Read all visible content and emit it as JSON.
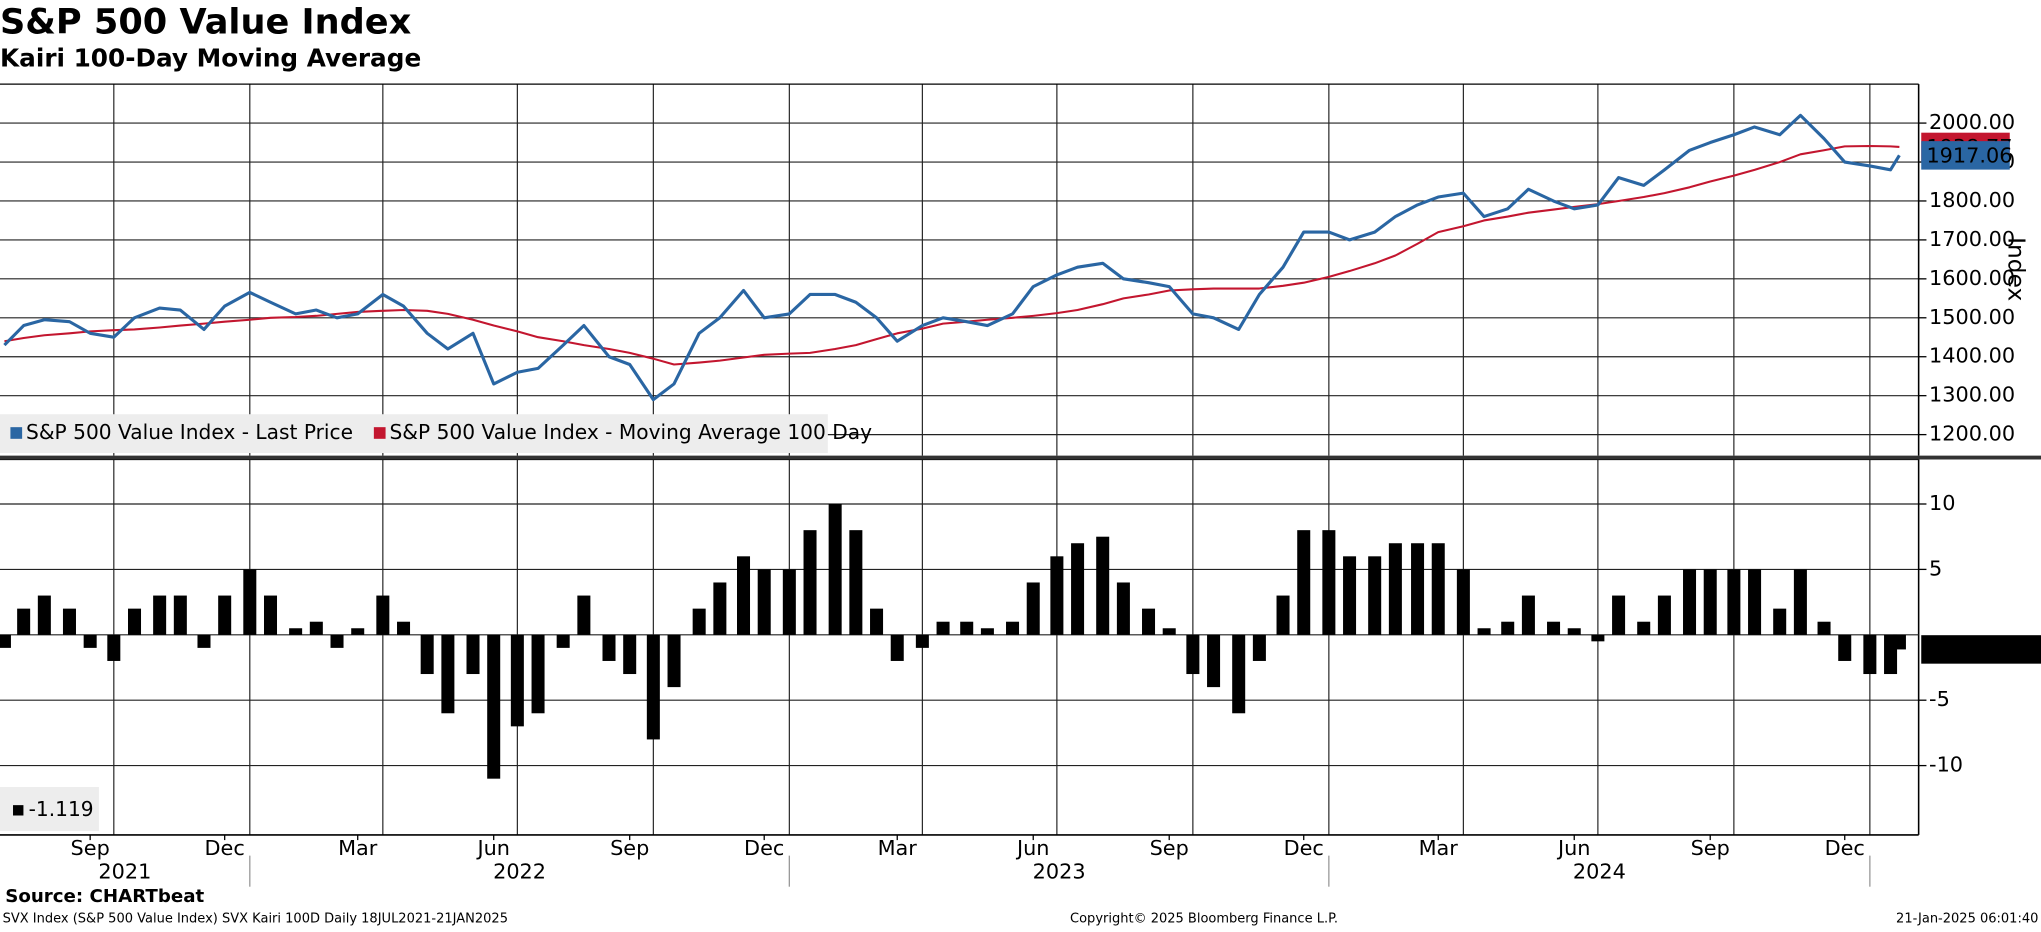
{
  "title": "S&P 500 Value Index",
  "subtitle": "Kairi 100-Day Moving Average",
  "chart_data": [
    {
      "type": "line",
      "y_label": "Index",
      "x": [
        "2021-07-19",
        "2021-08-01",
        "2021-08-15",
        "2021-09-01",
        "2021-09-15",
        "2021-10-01",
        "2021-10-15",
        "2021-11-01",
        "2021-11-15",
        "2021-12-01",
        "2021-12-15",
        "2022-01-01",
        "2022-01-15",
        "2022-02-01",
        "2022-02-15",
        "2022-03-01",
        "2022-03-15",
        "2022-04-01",
        "2022-04-15",
        "2022-05-01",
        "2022-05-15",
        "2022-06-01",
        "2022-06-15",
        "2022-07-01",
        "2022-07-15",
        "2022-08-01",
        "2022-08-15",
        "2022-09-01",
        "2022-09-15",
        "2022-10-01",
        "2022-10-15",
        "2022-11-01",
        "2022-11-15",
        "2022-12-01",
        "2022-12-15",
        "2023-01-01",
        "2023-01-15",
        "2023-02-01",
        "2023-02-15",
        "2023-03-01",
        "2023-03-15",
        "2023-04-01",
        "2023-04-15",
        "2023-05-01",
        "2023-05-15",
        "2023-06-01",
        "2023-06-15",
        "2023-07-01",
        "2023-07-15",
        "2023-08-01",
        "2023-08-15",
        "2023-09-01",
        "2023-09-15",
        "2023-10-01",
        "2023-10-15",
        "2023-11-01",
        "2023-11-15",
        "2023-12-01",
        "2023-12-15",
        "2024-01-01",
        "2024-01-15",
        "2024-02-01",
        "2024-02-15",
        "2024-03-01",
        "2024-03-15",
        "2024-04-01",
        "2024-04-15",
        "2024-05-01",
        "2024-05-15",
        "2024-06-01",
        "2024-06-15",
        "2024-07-01",
        "2024-07-15",
        "2024-08-01",
        "2024-08-15",
        "2024-09-01",
        "2024-09-15",
        "2024-10-01",
        "2024-10-15",
        "2024-11-01",
        "2024-11-15",
        "2024-12-01",
        "2024-12-15",
        "2025-01-01",
        "2025-01-15",
        "2025-01-21"
      ],
      "series": [
        {
          "name": "S&P 500 Value Index - Last Price",
          "color": "#2a66a3",
          "values": [
            1430,
            1480,
            1495,
            1490,
            1460,
            1450,
            1500,
            1525,
            1520,
            1470,
            1530,
            1565,
            1540,
            1510,
            1520,
            1500,
            1510,
            1560,
            1530,
            1460,
            1420,
            1460,
            1330,
            1360,
            1370,
            1430,
            1480,
            1400,
            1380,
            1290,
            1330,
            1460,
            1500,
            1570,
            1500,
            1510,
            1560,
            1560,
            1540,
            1500,
            1440,
            1480,
            1500,
            1490,
            1480,
            1510,
            1580,
            1610,
            1630,
            1640,
            1600,
            1590,
            1580,
            1510,
            1500,
            1470,
            1560,
            1630,
            1720,
            1720,
            1700,
            1720,
            1760,
            1790,
            1810,
            1820,
            1760,
            1780,
            1830,
            1800,
            1780,
            1790,
            1860,
            1840,
            1880,
            1930,
            1950,
            1970,
            1990,
            1970,
            2020,
            1960,
            1900,
            1890,
            1880,
            1917.06
          ]
        },
        {
          "name": "S&P 500 Value Index - Moving Average 100 Day",
          "color": "#c3162f",
          "values": [
            1440,
            1448,
            1455,
            1460,
            1465,
            1468,
            1470,
            1475,
            1480,
            1485,
            1490,
            1495,
            1500,
            1502,
            1505,
            1510,
            1515,
            1518,
            1520,
            1518,
            1510,
            1495,
            1480,
            1465,
            1450,
            1440,
            1430,
            1420,
            1410,
            1395,
            1380,
            1385,
            1390,
            1398,
            1405,
            1408,
            1410,
            1420,
            1430,
            1445,
            1460,
            1472,
            1485,
            1490,
            1495,
            1500,
            1505,
            1512,
            1520,
            1535,
            1550,
            1560,
            1570,
            1573,
            1575,
            1575,
            1575,
            1582,
            1590,
            1605,
            1620,
            1640,
            1660,
            1690,
            1720,
            1735,
            1750,
            1760,
            1770,
            1778,
            1785,
            1792,
            1800,
            1810,
            1820,
            1835,
            1850,
            1865,
            1880,
            1900,
            1920,
            1930,
            1940,
            1941,
            1940,
            1938.77
          ]
        }
      ],
      "xlim": [
        "2021-07-16",
        "2025-02-03"
      ],
      "xgrid": [
        "2021-10-01",
        "2022-01-01",
        "2022-04-01",
        "2022-07-01",
        "2022-10-01",
        "2023-01-01",
        "2023-04-01",
        "2023-07-01",
        "2023-10-01",
        "2024-01-01",
        "2024-04-01",
        "2024-07-01",
        "2024-10-01",
        "2025-01-01"
      ],
      "ylim": [
        1146,
        2100
      ],
      "yticks": [
        {
          "value": 2000,
          "label": "2000.00"
        },
        {
          "value": 1900,
          "label": "1900.00"
        },
        {
          "value": 1800,
          "label": "1800.00"
        },
        {
          "value": 1700,
          "label": "1700.00"
        },
        {
          "value": 1600,
          "label": "1600.00"
        },
        {
          "value": 1500,
          "label": "1500.00"
        },
        {
          "value": 1400,
          "label": "1400.00"
        },
        {
          "value": 1300,
          "label": "1300.00"
        },
        {
          "value": 1200,
          "label": "1200.00"
        }
      ],
      "grid": true,
      "legend": "lower left"
    },
    {
      "type": "bar",
      "color": "#000000",
      "x": [
        "2021-07-19",
        "2021-08-01",
        "2021-08-15",
        "2021-09-01",
        "2021-09-15",
        "2021-10-01",
        "2021-10-15",
        "2021-11-01",
        "2021-11-15",
        "2021-12-01",
        "2021-12-15",
        "2022-01-01",
        "2022-01-15",
        "2022-02-01",
        "2022-02-15",
        "2022-03-01",
        "2022-03-15",
        "2022-04-01",
        "2022-04-15",
        "2022-05-01",
        "2022-05-15",
        "2022-06-01",
        "2022-06-15",
        "2022-07-01",
        "2022-07-15",
        "2022-08-01",
        "2022-08-15",
        "2022-09-01",
        "2022-09-15",
        "2022-10-01",
        "2022-10-15",
        "2022-11-01",
        "2022-11-15",
        "2022-12-01",
        "2022-12-15",
        "2023-01-01",
        "2023-01-15",
        "2023-02-01",
        "2023-02-15",
        "2023-03-01",
        "2023-03-15",
        "2023-04-01",
        "2023-04-15",
        "2023-05-01",
        "2023-05-15",
        "2023-06-01",
        "2023-06-15",
        "2023-07-01",
        "2023-07-15",
        "2023-08-01",
        "2023-08-15",
        "2023-09-01",
        "2023-09-15",
        "2023-10-01",
        "2023-10-15",
        "2023-11-01",
        "2023-11-15",
        "2023-12-01",
        "2023-12-15",
        "2024-01-01",
        "2024-01-15",
        "2024-02-01",
        "2024-02-15",
        "2024-03-01",
        "2024-03-15",
        "2024-04-01",
        "2024-04-15",
        "2024-05-01",
        "2024-05-15",
        "2024-06-01",
        "2024-06-15",
        "2024-07-01",
        "2024-07-15",
        "2024-08-01",
        "2024-08-15",
        "2024-09-01",
        "2024-09-15",
        "2024-10-01",
        "2024-10-15",
        "2024-11-01",
        "2024-11-15",
        "2024-12-01",
        "2024-12-15",
        "2025-01-01",
        "2025-01-15",
        "2025-01-21"
      ],
      "values": [
        -1,
        2,
        3,
        2,
        -1,
        -2,
        2,
        3,
        3,
        -1,
        3,
        5,
        3,
        0.5,
        1,
        -1,
        0.5,
        3,
        1,
        -3,
        -6,
        -3,
        -11,
        -7,
        -6,
        -1,
        3,
        -2,
        -3,
        -8,
        -4,
        2,
        4,
        6,
        5,
        5,
        8,
        10,
        8,
        2,
        -2,
        -1,
        1,
        1,
        0.5,
        1,
        4,
        6,
        7,
        7.5,
        4,
        2,
        0.5,
        -3,
        -4,
        -6,
        -2,
        3,
        8,
        8,
        6,
        6,
        7,
        7,
        7,
        5,
        0.5,
        1,
        3,
        1,
        0.5,
        -0.5,
        3,
        1,
        3,
        5,
        5,
        5,
        5,
        2,
        5,
        1,
        -2,
        -3,
        -3,
        -1.119
      ],
      "xlim": [
        "2021-07-16",
        "2025-02-03"
      ],
      "xgrid": [
        "2021-10-01",
        "2022-01-01",
        "2022-04-01",
        "2022-07-01",
        "2022-10-01",
        "2023-01-01",
        "2023-04-01",
        "2023-07-01",
        "2023-10-01",
        "2024-01-01",
        "2024-04-01",
        "2024-07-01",
        "2024-10-01",
        "2025-01-01"
      ],
      "xticks": [
        {
          "value": "2021-09-15",
          "label": "Sep"
        },
        {
          "value": "2021-12-15",
          "label": "Dec"
        },
        {
          "value": "2022-03-15",
          "label": "Mar"
        },
        {
          "value": "2022-06-15",
          "label": "Jun"
        },
        {
          "value": "2022-09-15",
          "label": "Sep"
        },
        {
          "value": "2022-12-15",
          "label": "Dec"
        },
        {
          "value": "2023-03-15",
          "label": "Mar"
        },
        {
          "value": "2023-06-15",
          "label": "Jun"
        },
        {
          "value": "2023-09-15",
          "label": "Sep"
        },
        {
          "value": "2023-12-15",
          "label": "Dec"
        },
        {
          "value": "2024-03-15",
          "label": "Mar"
        },
        {
          "value": "2024-06-15",
          "label": "Jun"
        },
        {
          "value": "2024-09-15",
          "label": "Sep"
        },
        {
          "value": "2024-12-15",
          "label": "Dec"
        }
      ],
      "years": [
        2021,
        2022,
        2023,
        2024
      ],
      "ylim": [
        -15.3,
        13.4
      ],
      "yticks": [
        10,
        5,
        -5,
        -10
      ],
      "grid": true,
      "legend": "lower left"
    }
  ],
  "footer": {
    "source": "Source: CHARTbeat",
    "left": "SVX Index (S&P 500 Value Index) SVX Kairi 100D  Daily 18JUL2021-21JAN2025",
    "center": "Copyright© 2025 Bloomberg Finance L.P.",
    "right": "21-Jan-2025 06:01:40"
  }
}
